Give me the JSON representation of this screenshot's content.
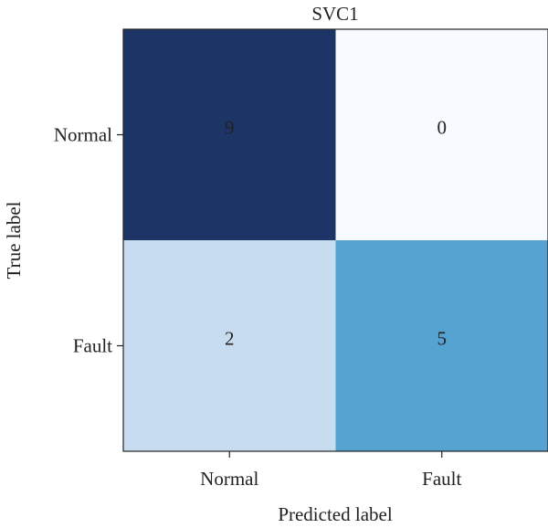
{
  "chart_data": {
    "type": "heatmap",
    "title": "SVC1",
    "xlabel": "Predicted label",
    "ylabel": "True label",
    "x_categories": [
      "Normal",
      "Fault"
    ],
    "y_categories": [
      "Normal",
      "Fault"
    ],
    "values": [
      [
        9,
        0
      ],
      [
        2,
        5
      ]
    ],
    "colormap": "Blues",
    "value_range": [
      0,
      9
    ],
    "grid": false,
    "colors": {
      "cells": [
        [
          "#1c3466",
          "#f7fbff"
        ],
        [
          "#c7dcef",
          "#56a2d1"
        ]
      ],
      "text": "#222222",
      "frame": "#222222"
    }
  }
}
